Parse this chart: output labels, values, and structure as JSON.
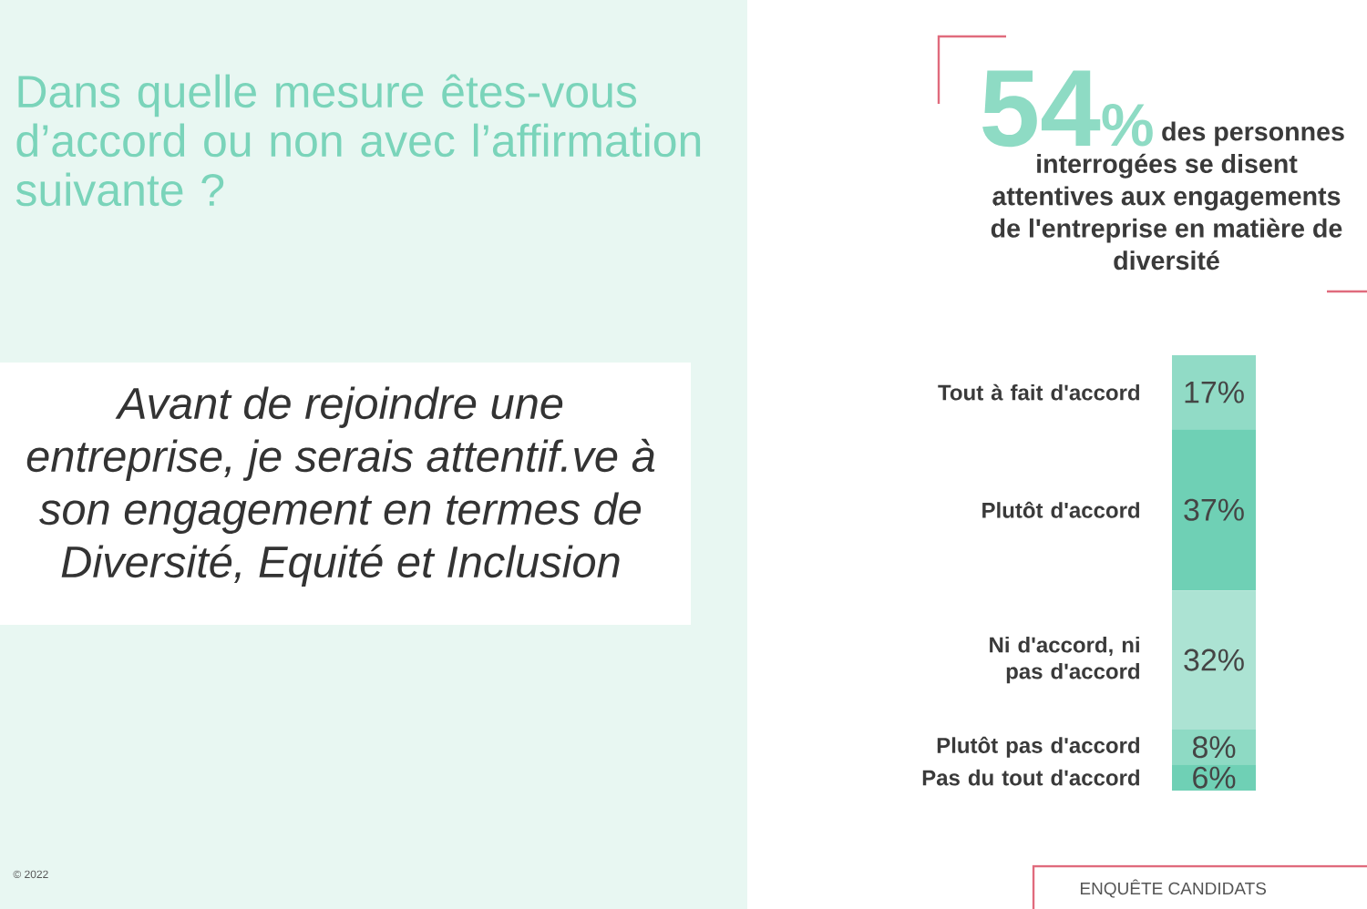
{
  "chart_data": {
    "type": "bar",
    "stacked": true,
    "title": "Dans quelle mesure êtes-vous d’accord ou non avec l’affirmation suivante ?",
    "annotations": [
      "Avant de rejoindre une entreprise, je serais attentif.ve à son engagement en termes de Diversité, Equité et Inclusion",
      "54%",
      "des personnes interrogées se disent attentives aux engagements de l'entreprise en matière de diversité",
      "ENQUÊTE CANDIDATS",
      "© 2022"
    ],
    "categories": [
      null
    ],
    "series": [
      {
        "name": "Pas du tout d'accord",
        "color": "#6fd0b5",
        "values": [
          6
        ],
        "value_labels": [
          "6%"
        ]
      },
      {
        "name": "Plutôt pas d'accord",
        "color": "#8edac4",
        "values": [
          8
        ],
        "value_labels": [
          "8%"
        ]
      },
      {
        "name": "Ni d'accord, ni pas d'accord",
        "color": "#ace3d3",
        "values": [
          32
        ],
        "value_labels": [
          "32%"
        ]
      },
      {
        "name": "Plutôt d'accord",
        "color": "#6fd0b5",
        "values": [
          37
        ],
        "value_labels": [
          "37%"
        ]
      },
      {
        "name": "Tout à fait d'accord",
        "color": "#91dbc6",
        "values": [
          17
        ],
        "value_labels": [
          "17%"
        ]
      }
    ]
  }
}
